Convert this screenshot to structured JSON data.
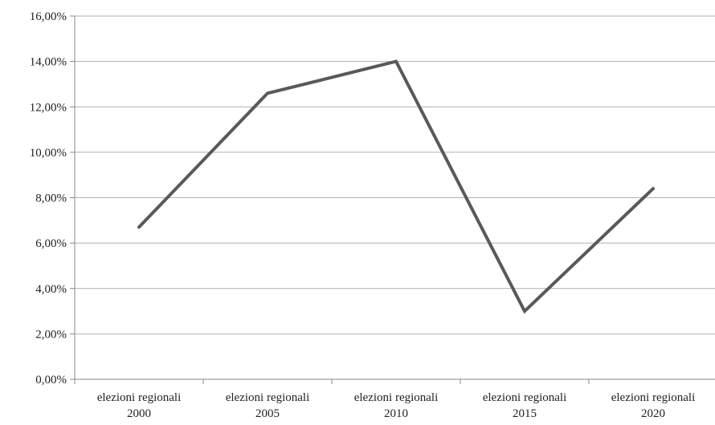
{
  "chart_data": {
    "type": "line",
    "categories": [
      "elezioni regionali 2000",
      "elezioni regionali 2005",
      "elezioni regionali 2010",
      "elezioni regionali 2015",
      "elezioni regionali 2020"
    ],
    "category_lines": [
      [
        "elezioni regionali",
        "2000"
      ],
      [
        "elezioni regionali",
        "2005"
      ],
      [
        "elezioni regionali",
        "2010"
      ],
      [
        "elezioni regionali",
        "2015"
      ],
      [
        "elezioni regionali",
        "2020"
      ]
    ],
    "series": [
      {
        "values": [
          6.7,
          12.6,
          14.0,
          3.0,
          8.4
        ]
      }
    ],
    "yticks": [
      "0,00%",
      "2,00%",
      "4,00%",
      "6,00%",
      "8,00%",
      "10,00%",
      "12,00%",
      "14,00%",
      "16,00%"
    ],
    "ylim": [
      0,
      16
    ],
    "title": "",
    "xlabel": "",
    "ylabel": "",
    "grid": true,
    "legend": "none",
    "colors": {
      "line": "#595959",
      "grid": "#b0b0b0",
      "axis": "#888888"
    }
  }
}
